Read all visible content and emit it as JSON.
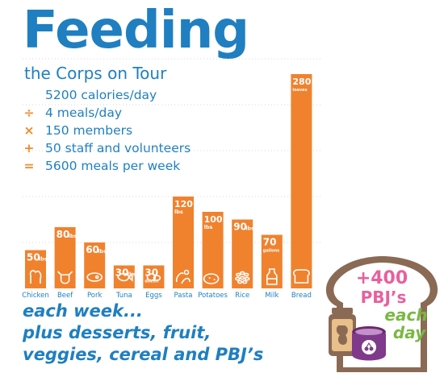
{
  "title": "Feeding",
  "subtitle": "the Corps on Tour",
  "calc": [
    {
      "op": "",
      "text": "5200 calories/day"
    },
    {
      "op": "÷",
      "text": "4 meals/day"
    },
    {
      "op": "×",
      "text": "150 members"
    },
    {
      "op": "+",
      "text": "50 staff and volunteers"
    },
    {
      "op": "=",
      "text": "5600 meals per week"
    }
  ],
  "chart_data": {
    "type": "bar",
    "title": "",
    "categories": [
      "Chicken",
      "Beef",
      "Pork",
      "Tuna",
      "Eggs",
      "Pasta",
      "Potatoes",
      "Rice",
      "Milk",
      "Bread"
    ],
    "values": [
      50,
      80,
      60,
      30,
      30,
      120,
      100,
      90,
      70,
      280
    ],
    "value_labels": [
      "50",
      "80",
      "60",
      "30",
      "30",
      "120",
      "100",
      "90",
      "70",
      "280"
    ],
    "unit_labels": [
      "lbs",
      "lbs",
      "lbs",
      "lbs",
      "dozen",
      "lbs",
      "lbs",
      "lbs",
      "gallons",
      "loaves"
    ],
    "icons": [
      "chicken-icon",
      "cow-icon",
      "pork-icon",
      "fish-icon",
      "egg-icon",
      "pasta-icon",
      "potato-icon",
      "rice-icon",
      "milk-bottle-icon",
      "bread-icon"
    ],
    "color": "#f0822e"
  },
  "footer": {
    "line1": "each week...",
    "line2": "plus desserts, fruit,",
    "line3": "veggies, cereal and PBJ’s"
  },
  "badge": {
    "line1": "+400",
    "line2": "PBJ’s",
    "line3": "each",
    "line4": "day",
    "icon": "peanut-butter-and-jelly-jars-icon"
  },
  "colors": {
    "brand_blue": "#1f7fc0",
    "bar_orange": "#f0822e",
    "pink": "#e8609c",
    "green": "#7ab843",
    "bread_brown": "#8a6a55"
  }
}
